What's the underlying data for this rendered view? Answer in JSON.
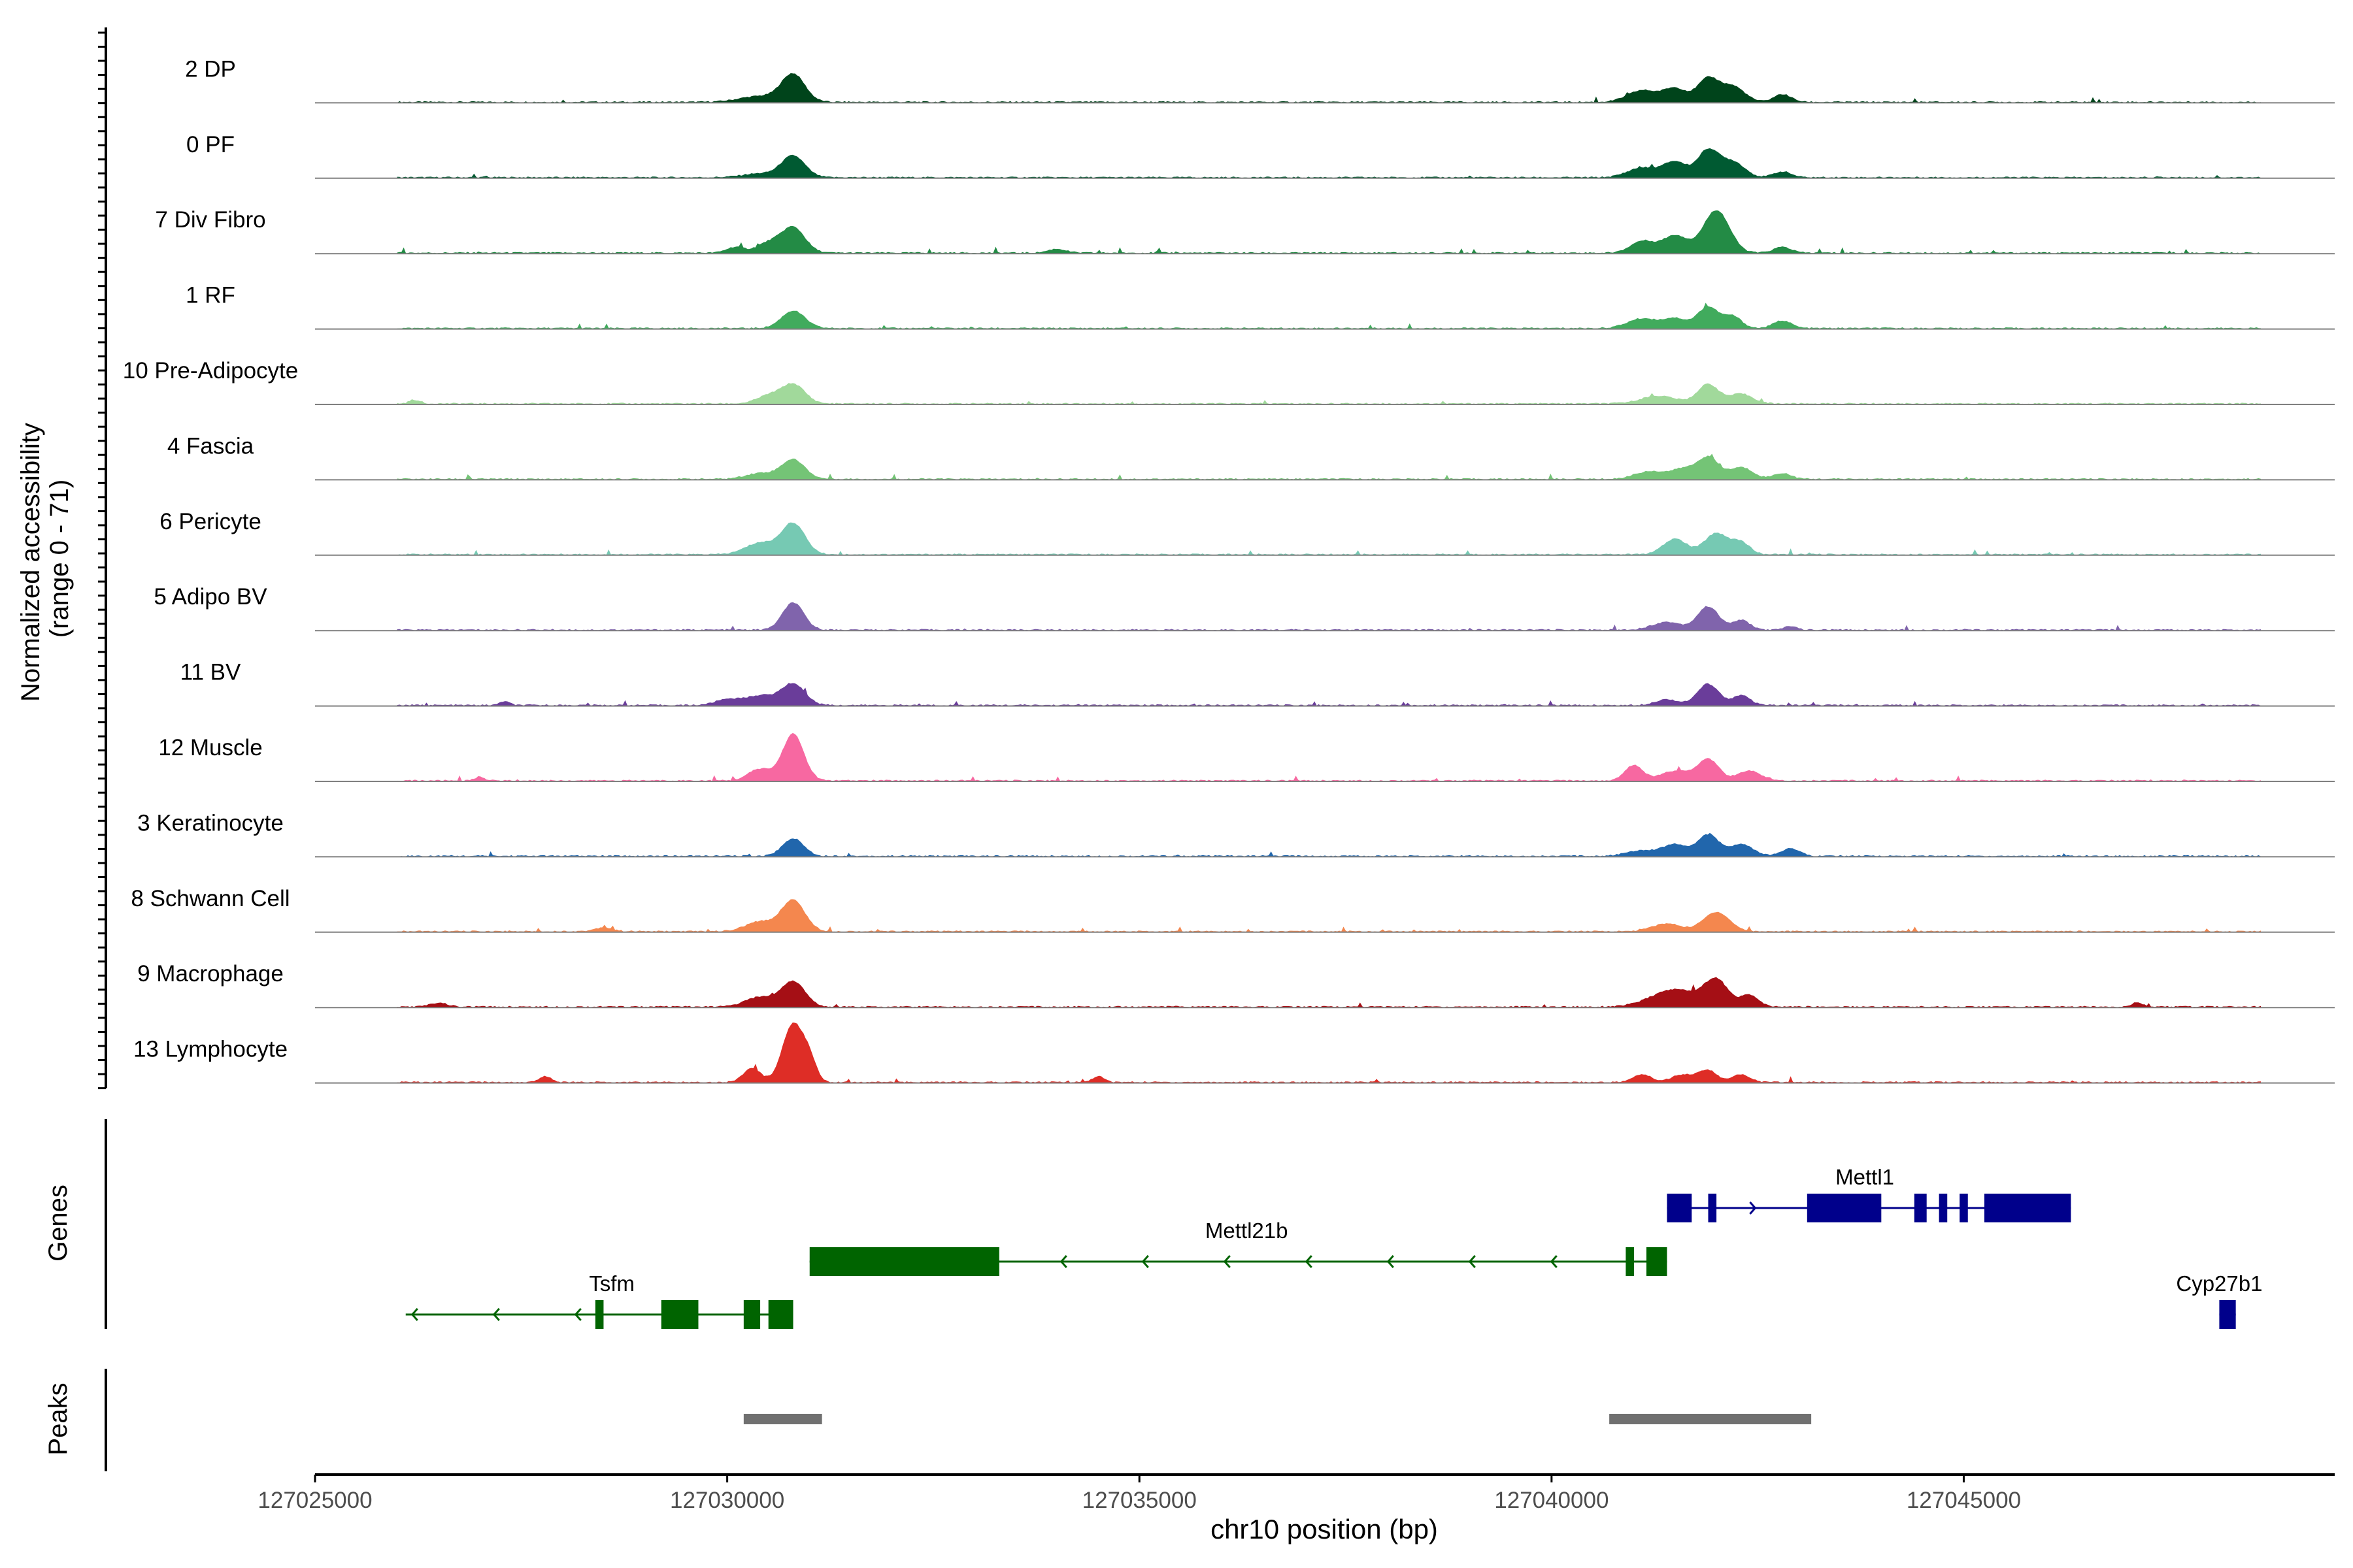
{
  "chart_data": {
    "type": "area",
    "chromosome": "chr10",
    "xlabel": "chr10 position (bp)",
    "xlim": [
      127025000,
      127049500
    ],
    "x_ticks": [
      127025000,
      127030000,
      127035000,
      127040000,
      127045000
    ],
    "x_tick_labels": [
      "127025000",
      "127030000",
      "127035000",
      "127040000",
      "127045000"
    ],
    "coverage": {
      "ylabel_line1": "Normalized accessibility",
      "ylabel_line2": "(range 0 - 71)",
      "ylim": [
        0,
        71
      ],
      "series": [
        {
          "name": "2 DP",
          "color": "#00441b",
          "peaks": [
            [
              127030800,
              14,
              200
            ],
            [
              127030400,
              3,
              350
            ],
            [
              127041100,
              6,
              250
            ],
            [
              127041500,
              7,
              200
            ],
            [
              127041900,
              12,
              180
            ],
            [
              127042200,
              8,
              200
            ],
            [
              127042800,
              4,
              150
            ]
          ]
        },
        {
          "name": "0 PF",
          "color": "#005a32",
          "peaks": [
            [
              127030800,
              11,
              200
            ],
            [
              127030400,
              2,
              300
            ],
            [
              127041100,
              5,
              250
            ],
            [
              127041500,
              8,
              200
            ],
            [
              127041900,
              14,
              180
            ],
            [
              127042200,
              8,
              200
            ],
            [
              127042800,
              3,
              150
            ]
          ]
        },
        {
          "name": "7 Div Fibro",
          "color": "#238b45",
          "peaks": [
            [
              127030800,
              13,
              200
            ],
            [
              127030500,
              5,
              200
            ],
            [
              127030100,
              3,
              150
            ],
            [
              127041100,
              6,
              200
            ],
            [
              127041500,
              9,
              220
            ],
            [
              127042000,
              22,
              220
            ],
            [
              127042800,
              3,
              150
            ],
            [
              127034000,
              2,
              150
            ]
          ]
        },
        {
          "name": "1 RF",
          "color": "#41ab5d",
          "peaks": [
            [
              127030800,
              9,
              200
            ],
            [
              127041100,
              5,
              250
            ],
            [
              127041500,
              5,
              200
            ],
            [
              127041900,
              11,
              180
            ],
            [
              127042200,
              6,
              150
            ],
            [
              127042800,
              4,
              150
            ]
          ]
        },
        {
          "name": "10 Pre-Adipocyte",
          "color": "#a1d99b",
          "peaks": [
            [
              127030800,
              10,
              200
            ],
            [
              127030500,
              4,
              200
            ],
            [
              127041300,
              4,
              300
            ],
            [
              127041900,
              10,
              180
            ],
            [
              127042300,
              5,
              200
            ],
            [
              127026200,
              2,
              80
            ]
          ]
        },
        {
          "name": "4 Fascia",
          "color": "#74c476",
          "peaks": [
            [
              127030800,
              10,
              200
            ],
            [
              127030400,
              3,
              250
            ],
            [
              127041200,
              4,
              250
            ],
            [
              127041600,
              5,
              200
            ],
            [
              127041900,
              11,
              180
            ],
            [
              127042300,
              6,
              200
            ],
            [
              127042800,
              3,
              150
            ]
          ]
        },
        {
          "name": "6 Pericyte",
          "color": "#76c9b3",
          "peaks": [
            [
              127030800,
              16,
              200
            ],
            [
              127030400,
              6,
              250
            ],
            [
              127041500,
              8,
              200
            ],
            [
              127042000,
              11,
              200
            ],
            [
              127042300,
              6,
              150
            ]
          ]
        },
        {
          "name": "5 Adipo BV",
          "color": "#8064ac",
          "peaks": [
            [
              127030800,
              14,
              180
            ],
            [
              127041400,
              4,
              250
            ],
            [
              127041900,
              12,
              180
            ],
            [
              127042300,
              5,
              150
            ],
            [
              127042900,
              2,
              100
            ]
          ]
        },
        {
          "name": "11 BV",
          "color": "#6a3d9a",
          "peaks": [
            [
              127030800,
              11,
              200
            ],
            [
              127030400,
              5,
              250
            ],
            [
              127030000,
              3,
              200
            ],
            [
              127041400,
              3,
              200
            ],
            [
              127041900,
              11,
              180
            ],
            [
              127042300,
              5,
              150
            ],
            [
              127027300,
              2,
              80
            ]
          ]
        },
        {
          "name": "12 Muscle",
          "color": "#f768a1",
          "peaks": [
            [
              127030800,
              24,
              180
            ],
            [
              127030400,
              6,
              200
            ],
            [
              127041000,
              8,
              150
            ],
            [
              127041500,
              5,
              250
            ],
            [
              127041900,
              11,
              180
            ],
            [
              127042400,
              5,
              200
            ],
            [
              127027000,
              2,
              80
            ]
          ]
        },
        {
          "name": "3 Keratinocyte",
          "color": "#2166ac",
          "peaks": [
            [
              127030800,
              9,
              180
            ],
            [
              127041100,
              3,
              250
            ],
            [
              127041500,
              6,
              200
            ],
            [
              127041900,
              11,
              180
            ],
            [
              127042300,
              6,
              200
            ],
            [
              127042900,
              4,
              150
            ]
          ]
        },
        {
          "name": "8 Schwann Cell",
          "color": "#f4874e",
          "peaks": [
            [
              127030800,
              16,
              200
            ],
            [
              127030400,
              5,
              250
            ],
            [
              127041400,
              4,
              250
            ],
            [
              127042000,
              10,
              220
            ],
            [
              127028500,
              2,
              150
            ]
          ]
        },
        {
          "name": "9 Macrophage",
          "color": "#a50f15",
          "peaks": [
            [
              127030800,
              13,
              200
            ],
            [
              127030400,
              5,
              250
            ],
            [
              127041500,
              9,
              400
            ],
            [
              127042000,
              13,
              200
            ],
            [
              127042400,
              6,
              150
            ],
            [
              127026500,
              2,
              150
            ],
            [
              127047100,
              2,
              100
            ]
          ]
        },
        {
          "name": "13 Lymphocyte",
          "color": "#de2d26",
          "peaks": [
            [
              127030800,
              30,
              180
            ],
            [
              127030300,
              7,
              150
            ],
            [
              127031000,
              9,
              120
            ],
            [
              127041100,
              4,
              150
            ],
            [
              127041600,
              4,
              200
            ],
            [
              127041900,
              6,
              150
            ],
            [
              127042300,
              4,
              150
            ],
            [
              127027800,
              3,
              100
            ],
            [
              127034500,
              3,
              100
            ]
          ]
        }
      ]
    },
    "genes": {
      "ylabel": "Genes",
      "items": [
        {
          "name": "Tsfm",
          "strand": "-",
          "color": "#006400",
          "row": 2,
          "start": 127026100,
          "end": 127030800,
          "exons": [
            [
              127028400,
              127028500
            ],
            [
              127029200,
              127029650
            ],
            [
              127030200,
              127030400
            ],
            [
              127030500,
              127030800
            ]
          ],
          "label_x": 127028600,
          "label_dir": "above"
        },
        {
          "name": "Mettl21b",
          "strand": "-",
          "color": "#006400",
          "row": 1,
          "start": 127031000,
          "end": 127041400,
          "exons": [
            [
              127031000,
              127033300
            ],
            [
              127040900,
              127041000
            ],
            [
              127041150,
              127041400
            ]
          ],
          "label_x": 127036300,
          "label_dir": "above"
        },
        {
          "name": "Mettl1",
          "strand": "+",
          "color": "#00008b",
          "row": 0,
          "start": 127041400,
          "end": 127046300,
          "exons": [
            [
              127041400,
              127041700
            ],
            [
              127041900,
              127042000
            ],
            [
              127043100,
              127044000
            ],
            [
              127044400,
              127044550
            ],
            [
              127044700,
              127044800
            ],
            [
              127044950,
              127045050
            ],
            [
              127045250,
              127046300
            ]
          ],
          "label_x": 127043800,
          "label_dir": "above"
        },
        {
          "name": "Cyp27b1",
          "strand": "+",
          "color": "#00008b",
          "row": 2,
          "start": 127048100,
          "end": 127048300,
          "exons": [
            [
              127048100,
              127048300
            ]
          ],
          "label_x": 127048100,
          "label_dir": "above"
        }
      ]
    },
    "peaks": {
      "ylabel": "Peaks",
      "color": "#707070",
      "regions": [
        [
          127030200,
          127031150
        ],
        [
          127040700,
          127043150
        ]
      ]
    }
  }
}
